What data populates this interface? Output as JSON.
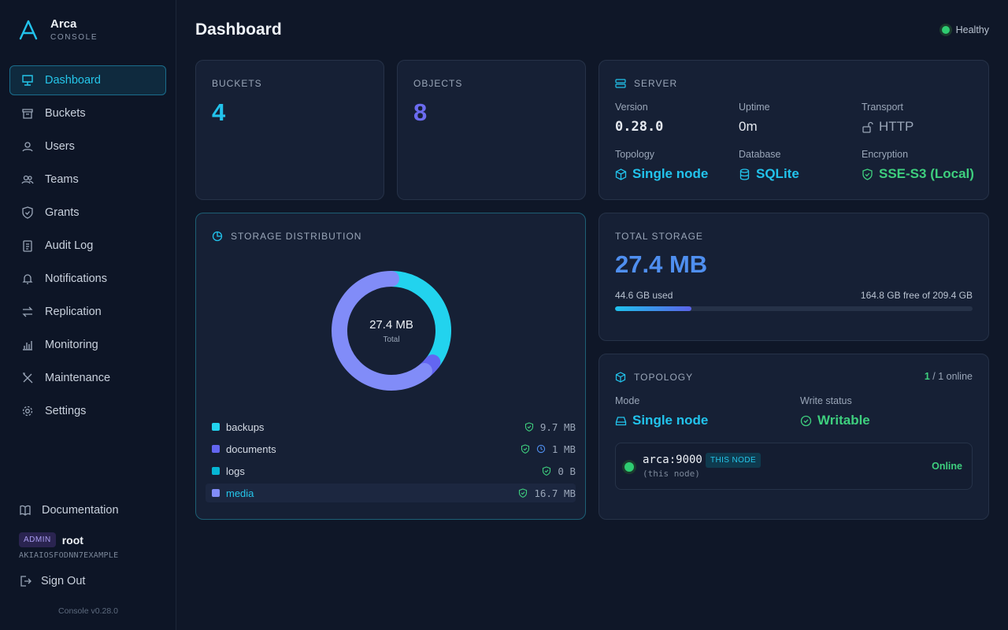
{
  "brand": {
    "name": "Arca",
    "sub": "CONSOLE"
  },
  "nav": [
    {
      "label": "Dashboard",
      "icon": "dashboard-icon",
      "active": true
    },
    {
      "label": "Buckets",
      "icon": "bucket-icon"
    },
    {
      "label": "Users",
      "icon": "users-icon"
    },
    {
      "label": "Teams",
      "icon": "teams-icon"
    },
    {
      "label": "Grants",
      "icon": "shield-icon"
    },
    {
      "label": "Audit Log",
      "icon": "clipboard-icon"
    },
    {
      "label": "Notifications",
      "icon": "bell-icon"
    },
    {
      "label": "Replication",
      "icon": "arrows-icon"
    },
    {
      "label": "Monitoring",
      "icon": "bar-chart-icon"
    },
    {
      "label": "Maintenance",
      "icon": "tools-icon"
    },
    {
      "label": "Settings",
      "icon": "gear-icon"
    }
  ],
  "sidebar_bottom": {
    "documentation": "Documentation",
    "role_badge": "ADMIN",
    "user": "root",
    "access_key": "AKIAIOSFODNN7EXAMPLE",
    "sign_out": "Sign Out",
    "version": "Console v0.28.0"
  },
  "header": {
    "title": "Dashboard",
    "health": "Healthy"
  },
  "stats": {
    "buckets": {
      "label": "BUCKETS",
      "value": "4",
      "color": "#22c3ec"
    },
    "objects": {
      "label": "OBJECTS",
      "value": "8",
      "color": "#6b6bf0"
    }
  },
  "server": {
    "label": "SERVER",
    "version_k": "Version",
    "version_v": "0.28.0",
    "uptime_k": "Uptime",
    "uptime_v": "0m",
    "transport_k": "Transport",
    "transport_v": "HTTP",
    "topology_k": "Topology",
    "topology_v": "Single node",
    "database_k": "Database",
    "database_v": "SQLite",
    "encryption_k": "Encryption",
    "encryption_v": "SSE-S3 (Local)"
  },
  "storage_distribution": {
    "label": "STORAGE DISTRIBUTION",
    "center_value": "27.4 MB",
    "center_label": "Total",
    "items": [
      {
        "name": "backups",
        "size": "9.7 MB",
        "color": "#22d3ee"
      },
      {
        "name": "documents",
        "size": "1 MB",
        "color": "#6366f1"
      },
      {
        "name": "logs",
        "size": "0 B",
        "color": "#06b6d4"
      },
      {
        "name": "media",
        "size": "16.7 MB",
        "color": "#818cf8"
      }
    ]
  },
  "total_storage": {
    "label": "TOTAL STORAGE",
    "value": "27.4 MB",
    "used": "44.6 GB used",
    "free": "164.8 GB free of 209.4 GB",
    "used_fraction": 0.213
  },
  "topology": {
    "label": "TOPOLOGY",
    "online_n": "1",
    "online_rest": " / 1 online",
    "mode_k": "Mode",
    "mode_v": "Single node",
    "write_k": "Write status",
    "write_v": "Writable",
    "node": {
      "name": "arca:9000",
      "badge": "THIS NODE",
      "sub": "(this node)",
      "status": "Online"
    }
  }
}
